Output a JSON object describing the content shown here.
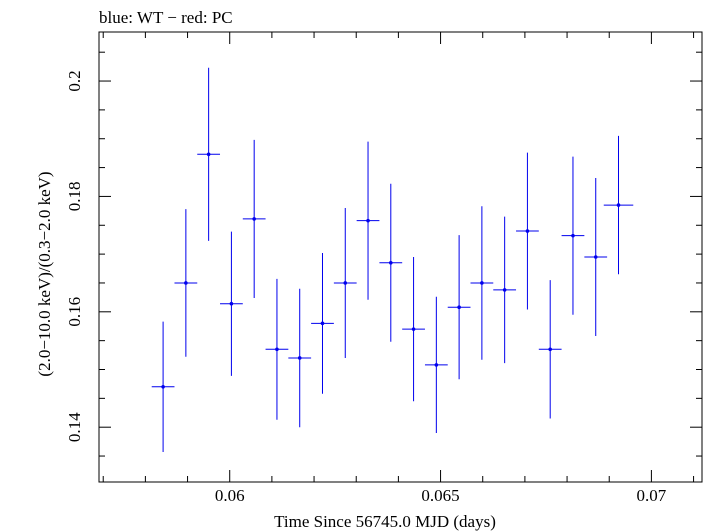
{
  "chart_data": {
    "type": "scatter",
    "title": "blue: WT − red: PC",
    "xlabel": "Time Since 56745.0 MJD (days)",
    "ylabel": "(2.0−10.0 keV)/(0.3−2.0 keV)",
    "xlim": [
      0.0569,
      0.0712
    ],
    "ylim": [
      0.1305,
      0.2085
    ],
    "x_ticks": [
      0.06,
      0.065,
      0.07
    ],
    "x_tick_labels": [
      "0.06",
      "0.065",
      "0.07"
    ],
    "y_ticks": [
      0.14,
      0.16,
      0.18,
      0.2
    ],
    "y_tick_labels": [
      "0.14",
      "0.16",
      "0.18",
      "0.2"
    ],
    "x_minor_step": 0.001,
    "y_minor_step": 0.005,
    "series": [
      {
        "name": "WT",
        "color": "#0000ee",
        "points": [
          {
            "x": 0.05842,
            "y": 0.147,
            "xerr": 0.00027,
            "yerr": 0.0113
          },
          {
            "x": 0.05896,
            "y": 0.165,
            "xerr": 0.00027,
            "yerr": 0.0128
          },
          {
            "x": 0.0595,
            "y": 0.1873,
            "xerr": 0.00027,
            "yerr": 0.015
          },
          {
            "x": 0.06004,
            "y": 0.1614,
            "xerr": 0.00027,
            "yerr": 0.0125
          },
          {
            "x": 0.06058,
            "y": 0.1761,
            "xerr": 0.00027,
            "yerr": 0.0137
          },
          {
            "x": 0.06112,
            "y": 0.1535,
            "xerr": 0.00027,
            "yerr": 0.0122
          },
          {
            "x": 0.06166,
            "y": 0.152,
            "xerr": 0.00027,
            "yerr": 0.012
          },
          {
            "x": 0.0622,
            "y": 0.158,
            "xerr": 0.00027,
            "yerr": 0.0122
          },
          {
            "x": 0.06274,
            "y": 0.165,
            "xerr": 0.00027,
            "yerr": 0.013
          },
          {
            "x": 0.06328,
            "y": 0.1758,
            "xerr": 0.00027,
            "yerr": 0.0137
          },
          {
            "x": 0.06382,
            "y": 0.1685,
            "xerr": 0.00027,
            "yerr": 0.0137
          },
          {
            "x": 0.06436,
            "y": 0.157,
            "xerr": 0.00027,
            "yerr": 0.0125
          },
          {
            "x": 0.0649,
            "y": 0.1508,
            "xerr": 0.00027,
            "yerr": 0.0118
          },
          {
            "x": 0.06544,
            "y": 0.1608,
            "xerr": 0.00027,
            "yerr": 0.0125
          },
          {
            "x": 0.06598,
            "y": 0.165,
            "xerr": 0.00027,
            "yerr": 0.0133
          },
          {
            "x": 0.06652,
            "y": 0.1638,
            "xerr": 0.00027,
            "yerr": 0.0127
          },
          {
            "x": 0.06706,
            "y": 0.174,
            "xerr": 0.00027,
            "yerr": 0.0136
          },
          {
            "x": 0.0676,
            "y": 0.1535,
            "xerr": 0.00027,
            "yerr": 0.012
          },
          {
            "x": 0.06814,
            "y": 0.1732,
            "xerr": 0.00027,
            "yerr": 0.0137
          },
          {
            "x": 0.06868,
            "y": 0.1695,
            "xerr": 0.00027,
            "yerr": 0.0137
          },
          {
            "x": 0.06922,
            "y": 0.1785,
            "xerr": 0.00035,
            "yerr": 0.012
          }
        ]
      }
    ]
  }
}
